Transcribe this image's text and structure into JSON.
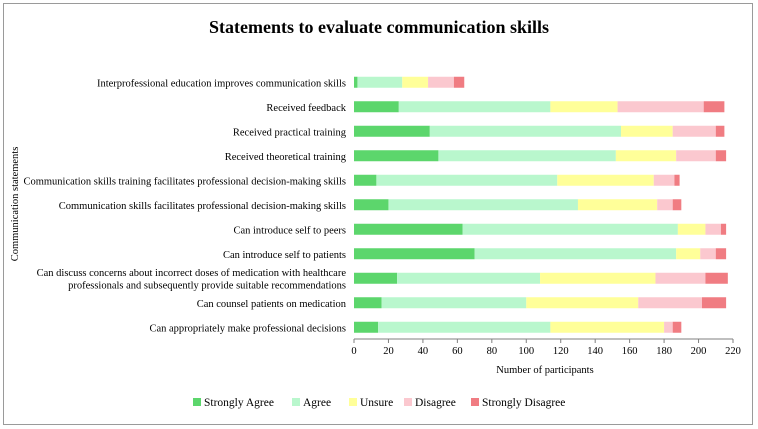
{
  "chart_data": {
    "type": "bar",
    "orientation": "horizontal",
    "stacked": true,
    "title": "Statements to evaluate communication skills",
    "xlabel": "Number of participants",
    "ylabel": "Communication statements",
    "xlim": [
      0,
      220
    ],
    "xticks": [
      0,
      20,
      40,
      60,
      80,
      100,
      120,
      140,
      160,
      180,
      200,
      220
    ],
    "grid": false,
    "legend_position": "bottom",
    "categories": [
      [
        "Interprofessional education improves communication skills"
      ],
      [
        "Received feedback"
      ],
      [
        "Received practical training"
      ],
      [
        "Received theoretical training"
      ],
      [
        "Communication skills training facilitates professional decision-making skills"
      ],
      [
        "Communication skills facilitates professional decision-making skills"
      ],
      [
        "Can introduce self to peers"
      ],
      [
        "Can introduce self to patients"
      ],
      [
        "Can discuss concerns about incorrect doses of medication with healthcare",
        "professionals and subsequently provide suitable recommendations"
      ],
      [
        "Can counsel patients on medication"
      ],
      [
        "Can appropriately make professional decisions"
      ]
    ],
    "series": [
      {
        "name": "Strongly Agree",
        "color": "#5cd66c",
        "values": [
          2,
          26,
          44,
          49,
          13,
          20,
          63,
          70,
          25,
          16,
          14
        ]
      },
      {
        "name": "Agree",
        "color": "#b9f7cd",
        "values": [
          26,
          88,
          111,
          103,
          105,
          110,
          125,
          117,
          83,
          84,
          100
        ]
      },
      {
        "name": "Unsure",
        "color": "#ffff99",
        "values": [
          15,
          39,
          30,
          35,
          56,
          46,
          16,
          14,
          67,
          65,
          66
        ]
      },
      {
        "name": "Disagree",
        "color": "#fbc8cf",
        "values": [
          15,
          50,
          25,
          23,
          12,
          9,
          9,
          9,
          29,
          37,
          5
        ]
      },
      {
        "name": "Strongly Disagree",
        "color": "#f07c82",
        "values": [
          6,
          12,
          5,
          6,
          3,
          5,
          3,
          6,
          13,
          14,
          5
        ]
      }
    ]
  }
}
